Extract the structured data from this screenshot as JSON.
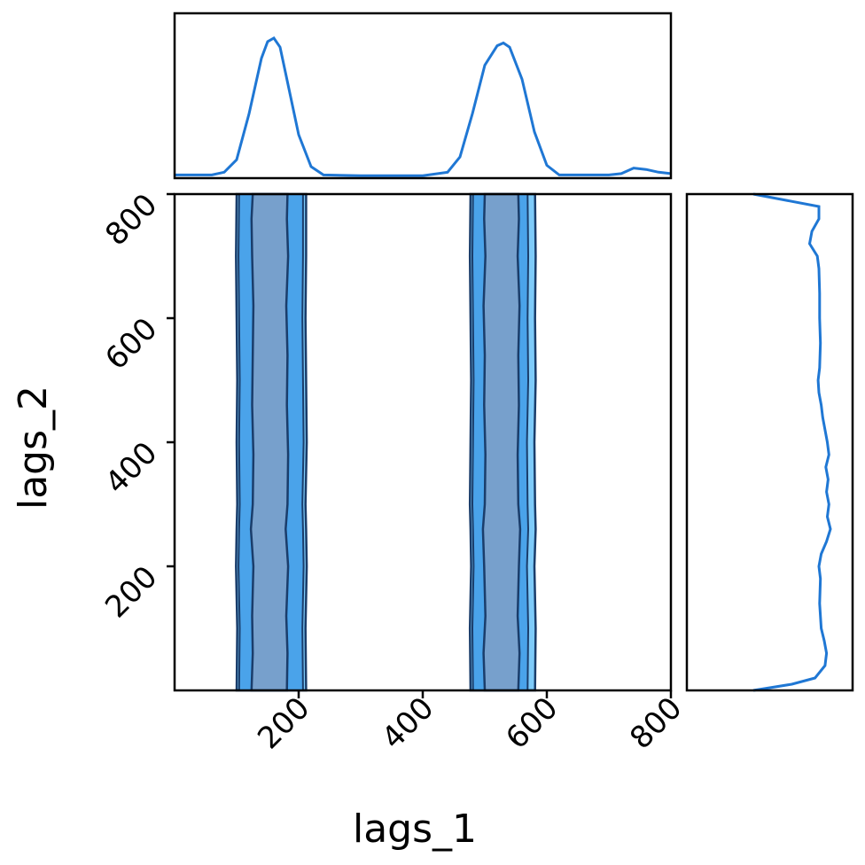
{
  "chart_data": [
    {
      "panel": "marginal-x",
      "type": "line",
      "xlim": [
        0,
        800
      ],
      "y_axis_visible": false,
      "x": [
        0,
        60,
        80,
        100,
        120,
        140,
        150,
        160,
        170,
        180,
        200,
        220,
        240,
        300,
        400,
        440,
        460,
        480,
        500,
        520,
        530,
        540,
        560,
        580,
        600,
        620,
        700,
        720,
        740,
        760,
        780,
        800
      ],
      "y": [
        0.01,
        0.01,
        0.03,
        0.12,
        0.45,
        0.85,
        0.97,
        0.995,
        0.93,
        0.72,
        0.3,
        0.07,
        0.01,
        0.005,
        0.005,
        0.03,
        0.14,
        0.45,
        0.8,
        0.94,
        0.96,
        0.93,
        0.7,
        0.32,
        0.08,
        0.01,
        0.01,
        0.02,
        0.06,
        0.05,
        0.03,
        0.02
      ]
    },
    {
      "panel": "joint",
      "type": "contour",
      "xlabel": "lags_1",
      "ylabel": "lags_2",
      "xlim": [
        0,
        800
      ],
      "ylim": [
        0,
        800
      ],
      "xticks": [
        "200",
        "400",
        "600",
        "800"
      ],
      "yticks": [
        "200",
        "400",
        "600",
        "800"
      ],
      "levels": [
        {
          "level": "outer",
          "fill": "#7ecbfa",
          "bands": [
            {
              "y": [
                0,
                100,
                200,
                260,
                300,
                400,
                500,
                600,
                700,
                800
              ],
              "x_left": [
                100,
                101,
                99,
                100,
                101,
                100,
                101,
                100,
                99,
                100
              ],
              "x_right": [
                212,
                211,
                213,
                212,
                211,
                213,
                212,
                211,
                212,
                212
              ]
            },
            {
              "y": [
                0,
                100,
                200,
                260,
                300,
                400,
                500,
                600,
                700,
                800
              ],
              "x_left": [
                477,
                476,
                478,
                477,
                476,
                477,
                478,
                477,
                476,
                477
              ],
              "x_right": [
                581,
                582,
                580,
                582,
                581,
                580,
                582,
                581,
                582,
                581
              ]
            }
          ]
        },
        {
          "level": "middle",
          "fill": "#4aa3ea",
          "bands": [
            {
              "y": [
                0,
                100,
                200,
                260,
                300,
                400,
                500,
                600,
                700,
                800
              ],
              "x_left": [
                104,
                105,
                103,
                104,
                105,
                104,
                105,
                104,
                103,
                104
              ],
              "x_right": [
                207,
                206,
                208,
                207,
                206,
                208,
                207,
                206,
                207,
                207
              ]
            },
            {
              "y": [
                0,
                100,
                200,
                260,
                300,
                400,
                500,
                600,
                700,
                800
              ],
              "x_left": [
                481,
                480,
                482,
                481,
                480,
                481,
                482,
                481,
                480,
                481
              ],
              "x_right": [
                569,
                570,
                568,
                570,
                569,
                568,
                570,
                569,
                570,
                569
              ]
            }
          ]
        },
        {
          "level": "inner",
          "fill": "#77a0cc",
          "bands": [
            {
              "y": [
                0,
                60,
                120,
                200,
                260,
                300,
                380,
                460,
                540,
                620,
                700,
                760,
                800
              ],
              "x_left": [
                124,
                126,
                125,
                127,
                123,
                126,
                127,
                125,
                126,
                127,
                125,
                124,
                126
              ],
              "x_right": [
                181,
                182,
                180,
                183,
                179,
                182,
                183,
                181,
                182,
                180,
                183,
                181,
                182
              ]
            },
            {
              "y": [
                0,
                60,
                120,
                200,
                260,
                300,
                380,
                460,
                540,
                620,
                700,
                760,
                800
              ],
              "x_left": [
                500,
                498,
                501,
                499,
                497,
                500,
                501,
                499,
                500,
                498,
                501,
                499,
                500
              ],
              "x_right": [
                554,
                556,
                553,
                555,
                557,
                554,
                553,
                555,
                554,
                556,
                553,
                555,
                554
              ]
            }
          ]
        }
      ]
    },
    {
      "panel": "marginal-y",
      "type": "line",
      "ylim": [
        0,
        800
      ],
      "x_axis_visible": false,
      "y": [
        0,
        10,
        20,
        40,
        60,
        80,
        100,
        140,
        180,
        200,
        220,
        240,
        260,
        280,
        300,
        320,
        340,
        360,
        380,
        400,
        420,
        440,
        460,
        480,
        500,
        520,
        560,
        600,
        640,
        680,
        700,
        720,
        740,
        760,
        780,
        800
      ],
      "density": [
        0.0,
        0.5,
        0.8,
        0.93,
        0.95,
        0.92,
        0.88,
        0.86,
        0.87,
        0.85,
        0.88,
        0.95,
        1.0,
        0.96,
        0.98,
        0.95,
        0.97,
        0.94,
        0.98,
        0.96,
        0.93,
        0.9,
        0.88,
        0.85,
        0.84,
        0.86,
        0.87,
        0.86,
        0.86,
        0.85,
        0.83,
        0.73,
        0.76,
        0.85,
        0.85,
        0.0
      ]
    }
  ],
  "colors": {
    "line": "#1f77d4",
    "contour_edge": "#1a3d6b",
    "spine": "#000000"
  }
}
